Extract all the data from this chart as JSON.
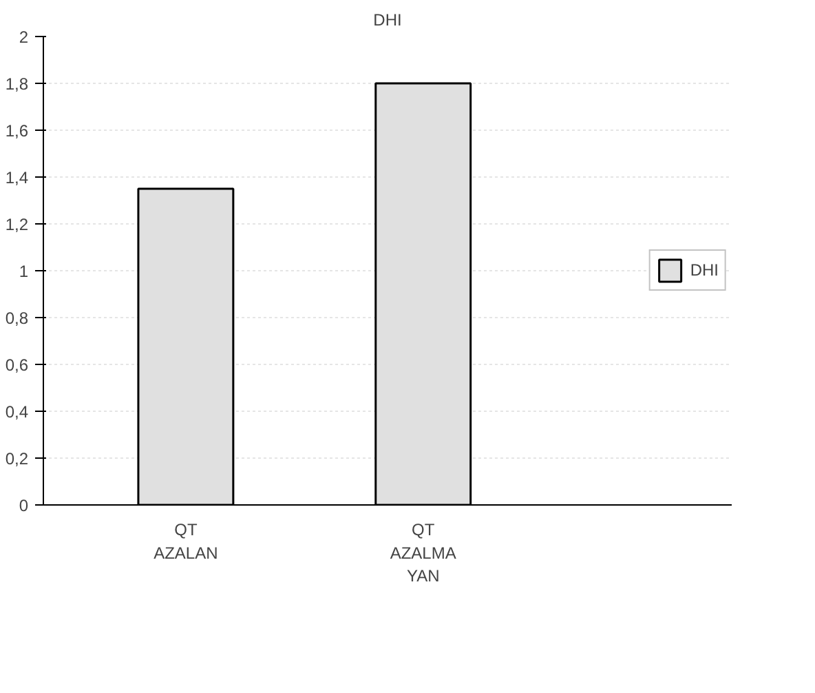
{
  "chart_data": {
    "type": "bar",
    "title": "DHI",
    "categories": [
      "QT\nAZALAN",
      "QT\nAZALMA\nYAN"
    ],
    "series": [
      {
        "name": "DHI",
        "color": "#e0e0e0",
        "values": [
          1.35,
          1.8
        ]
      }
    ],
    "ylim": [
      0,
      2
    ],
    "yticks": [
      0,
      {
        "value": 0.2,
        "label": "0,2"
      },
      {
        "value": 0.4,
        "label": "0,4"
      },
      {
        "value": 0.6,
        "label": "0,6"
      },
      {
        "value": 0.8,
        "label": "0,8"
      },
      1,
      {
        "value": 1.2,
        "label": "1,2"
      },
      {
        "value": 1.4,
        "label": "1,4"
      },
      {
        "value": 1.6,
        "label": "1,6"
      },
      {
        "value": 1.8,
        "label": "1,8"
      },
      2
    ],
    "grid": "y",
    "legend": "right"
  }
}
